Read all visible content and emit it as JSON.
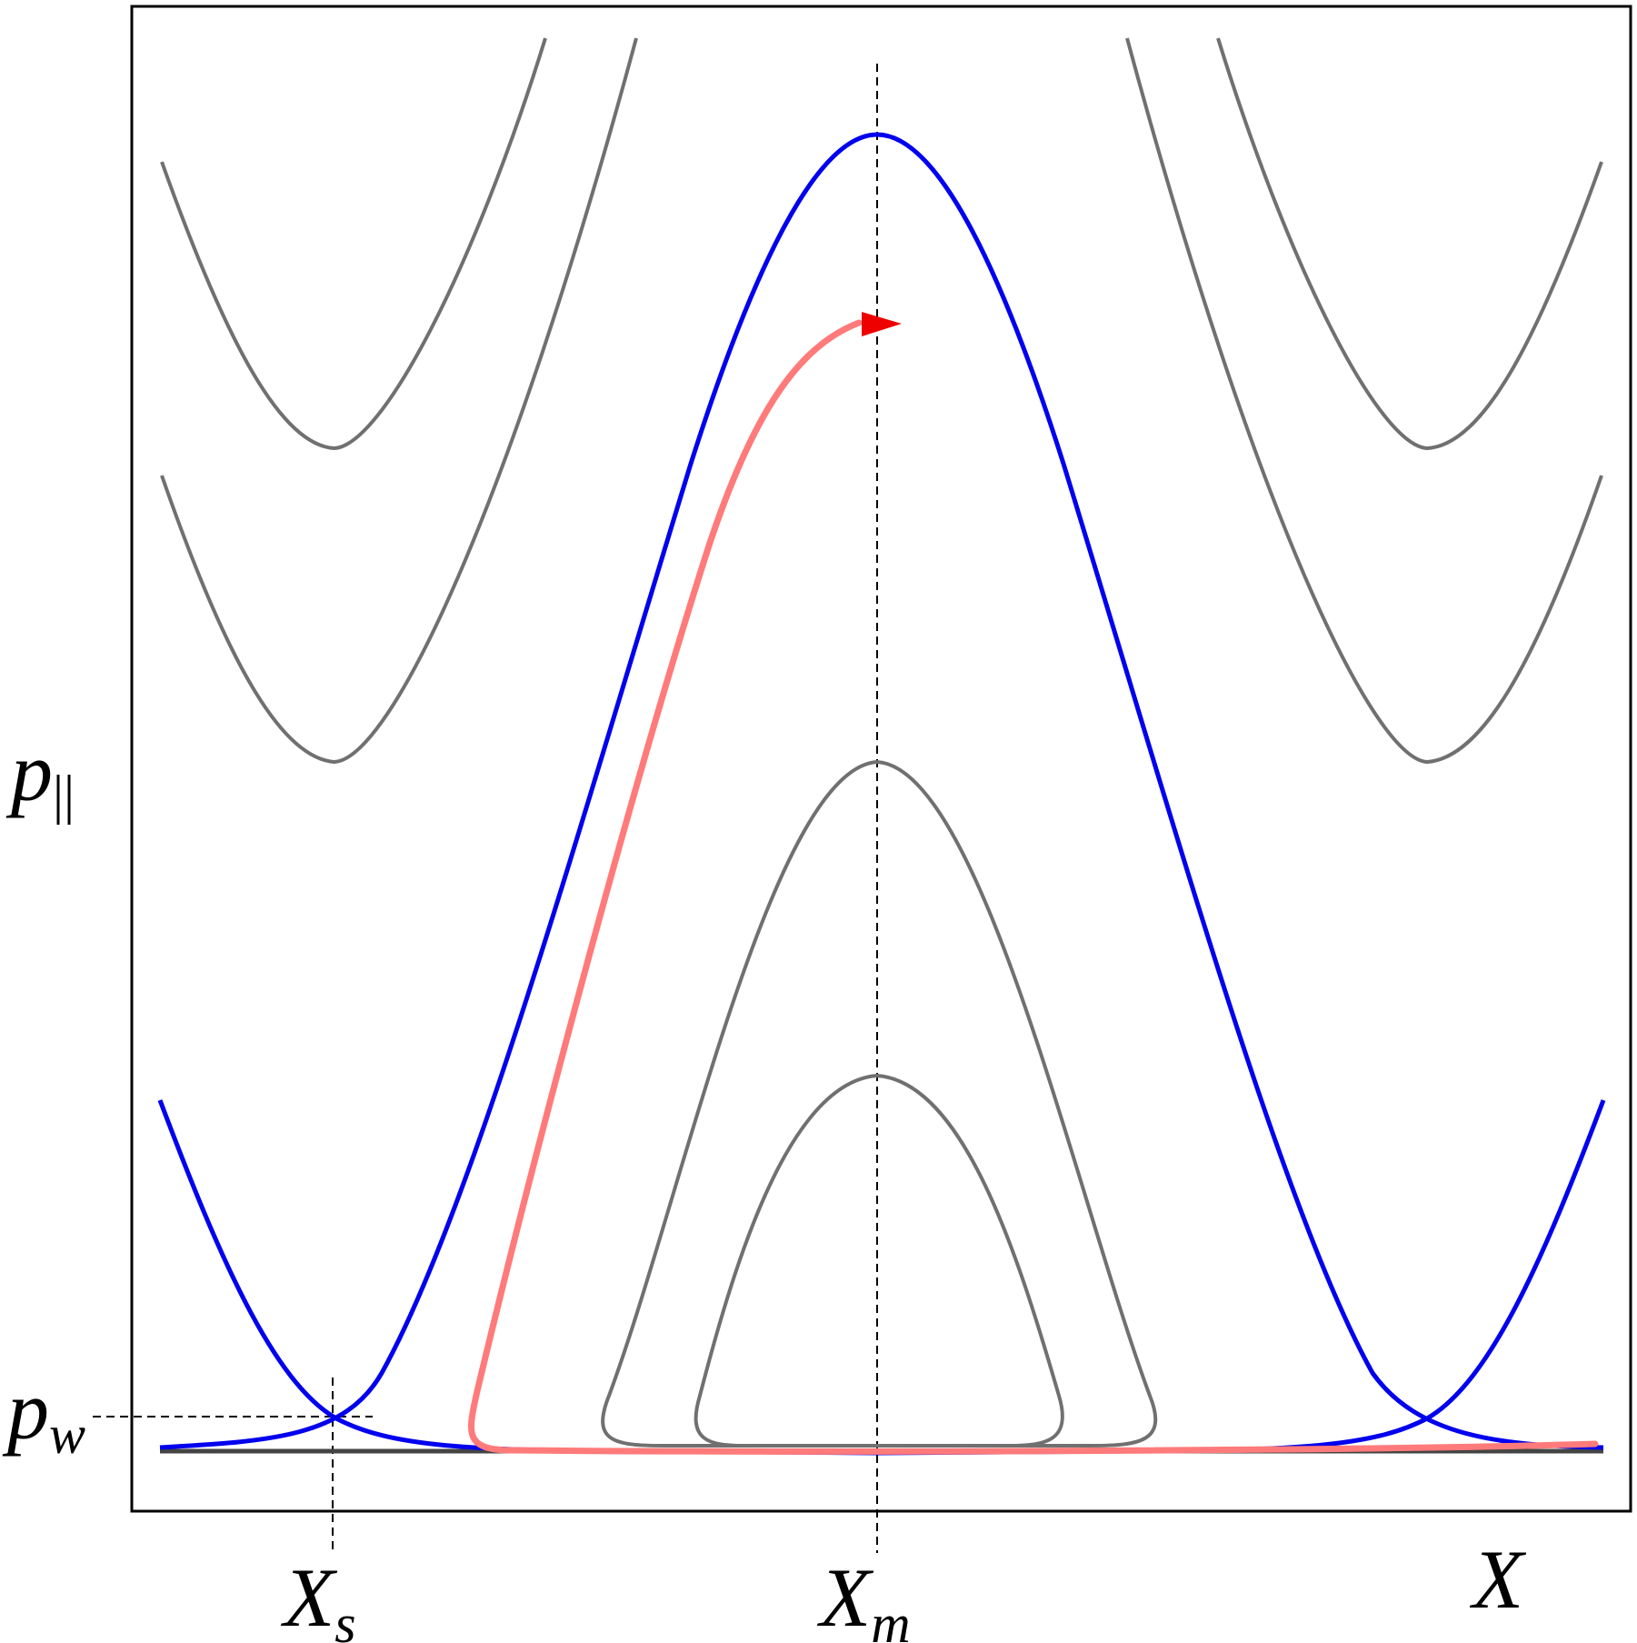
{
  "labels": {
    "y_axis": "p",
    "y_axis_sub": "||",
    "p_w": "p",
    "p_w_sub": "w",
    "x_s": "X",
    "x_s_sub": "s",
    "x_m": "X",
    "x_m_sub": "m",
    "x_axis": "X"
  },
  "colors": {
    "separatrix": "#0000ee",
    "contour": "#707070",
    "trajectory": "#ff7a7a",
    "arrow": "#ee0000",
    "frame": "#000000",
    "guide": "#000000"
  }
}
